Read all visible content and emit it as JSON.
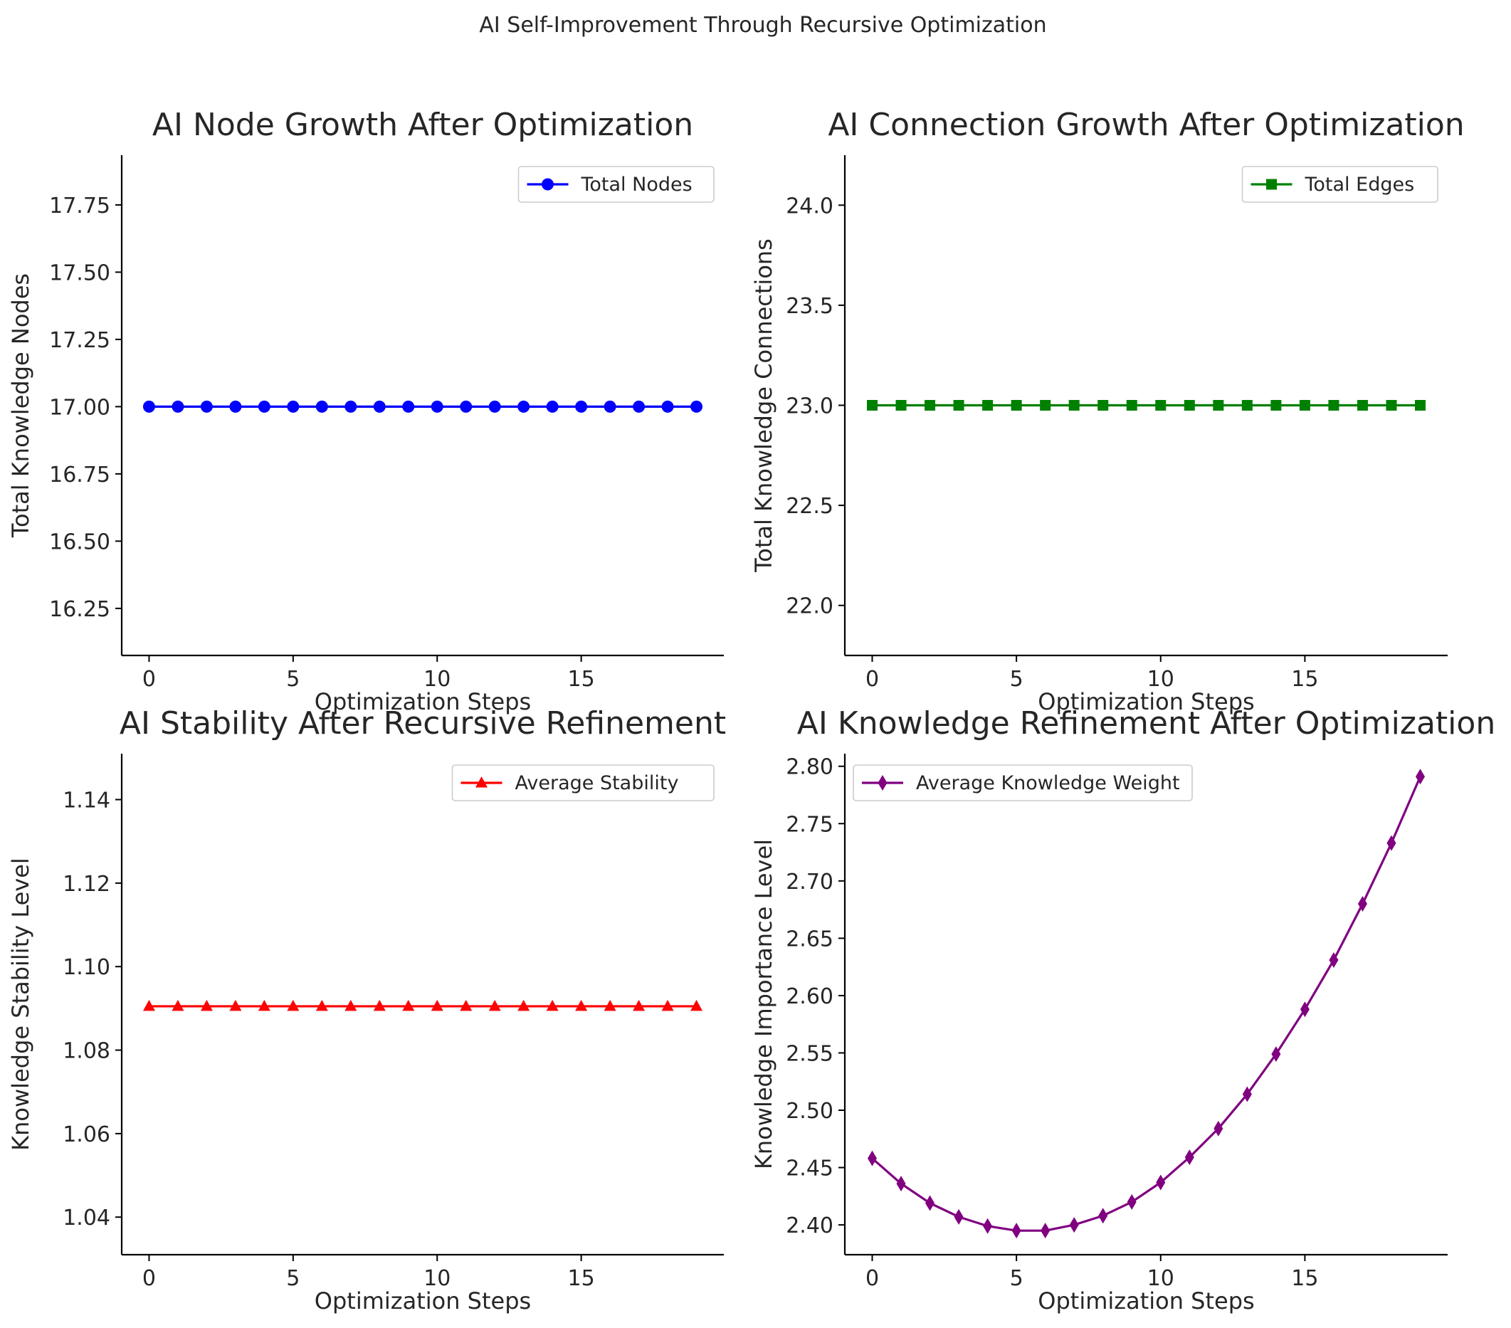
{
  "figure": {
    "suptitle": "AI Self-Improvement Through Recursive Optimization"
  },
  "chart_data": [
    {
      "type": "line",
      "title": "AI Node Growth After Optimization",
      "xlabel": "Optimization Steps",
      "ylabel": "Total Knowledge Nodes",
      "xlim": [
        -0.95,
        19.95
      ],
      "ylim": [
        16.075,
        17.935
      ],
      "xticks": [
        0,
        5,
        10,
        15
      ],
      "yticks": [
        16.25,
        16.5,
        16.75,
        17.0,
        17.25,
        17.5,
        17.75
      ],
      "ytick_labels": [
        "16.25",
        "16.50",
        "16.75",
        "17.00",
        "17.25",
        "17.50",
        "17.75"
      ],
      "xtick_labels": [
        "0",
        "5",
        "10",
        "15"
      ],
      "legend_position": "upper right",
      "grid": false,
      "series": [
        {
          "name": "Total Nodes",
          "color": "#0000ff",
          "marker": "circle",
          "x": [
            0,
            1,
            2,
            3,
            4,
            5,
            6,
            7,
            8,
            9,
            10,
            11,
            12,
            13,
            14,
            15,
            16,
            17,
            18,
            19
          ],
          "y": [
            17,
            17,
            17,
            17,
            17,
            17,
            17,
            17,
            17,
            17,
            17,
            17,
            17,
            17,
            17,
            17,
            17,
            17,
            17,
            17
          ]
        }
      ]
    },
    {
      "type": "line",
      "title": "AI Connection Growth After Optimization",
      "xlabel": "Optimization Steps",
      "ylabel": "Total Knowledge Connections",
      "xlim": [
        -0.95,
        19.95
      ],
      "ylim": [
        21.75,
        24.25
      ],
      "xticks": [
        0,
        5,
        10,
        15
      ],
      "yticks": [
        22.0,
        22.5,
        23.0,
        23.5,
        24.0
      ],
      "ytick_labels": [
        "22.0",
        "22.5",
        "23.0",
        "23.5",
        "24.0"
      ],
      "xtick_labels": [
        "0",
        "5",
        "10",
        "15"
      ],
      "legend_position": "upper right",
      "grid": false,
      "series": [
        {
          "name": "Total Edges",
          "color": "#008000",
          "marker": "square",
          "x": [
            0,
            1,
            2,
            3,
            4,
            5,
            6,
            7,
            8,
            9,
            10,
            11,
            12,
            13,
            14,
            15,
            16,
            17,
            18,
            19
          ],
          "y": [
            23,
            23,
            23,
            23,
            23,
            23,
            23,
            23,
            23,
            23,
            23,
            23,
            23,
            23,
            23,
            23,
            23,
            23,
            23,
            23
          ]
        }
      ]
    },
    {
      "type": "line",
      "title": "AI Stability After Recursive Refinement",
      "xlabel": "Optimization Steps",
      "ylabel": "Knowledge Stability Level",
      "xlim": [
        -0.95,
        19.95
      ],
      "ylim": [
        1.031,
        1.151
      ],
      "xticks": [
        0,
        5,
        10,
        15
      ],
      "yticks": [
        1.04,
        1.06,
        1.08,
        1.1,
        1.12,
        1.14
      ],
      "ytick_labels": [
        "1.04",
        "1.06",
        "1.08",
        "1.10",
        "1.12",
        "1.14"
      ],
      "xtick_labels": [
        "0",
        "5",
        "10",
        "15"
      ],
      "legend_position": "upper right",
      "grid": false,
      "series": [
        {
          "name": "Average Stability",
          "color": "#ff0000",
          "marker": "triangle",
          "x": [
            0,
            1,
            2,
            3,
            4,
            5,
            6,
            7,
            8,
            9,
            10,
            11,
            12,
            13,
            14,
            15,
            16,
            17,
            18,
            19
          ],
          "y": [
            1.0905,
            1.0905,
            1.0905,
            1.0905,
            1.0905,
            1.0905,
            1.0905,
            1.0905,
            1.0905,
            1.0905,
            1.0905,
            1.0905,
            1.0905,
            1.0905,
            1.0905,
            1.0905,
            1.0905,
            1.0905,
            1.0905,
            1.0905
          ]
        }
      ]
    },
    {
      "type": "line",
      "title": "AI Knowledge Refinement After Optimization",
      "xlabel": "Optimization Steps",
      "ylabel": "Knowledge Importance Level",
      "xlim": [
        -0.95,
        19.95
      ],
      "ylim": [
        2.374,
        2.811
      ],
      "xticks": [
        0,
        5,
        10,
        15
      ],
      "yticks": [
        2.4,
        2.45,
        2.5,
        2.55,
        2.6,
        2.65,
        2.7,
        2.75,
        2.8
      ],
      "ytick_labels": [
        "2.40",
        "2.45",
        "2.50",
        "2.55",
        "2.60",
        "2.65",
        "2.70",
        "2.75",
        "2.80"
      ],
      "xtick_labels": [
        "0",
        "5",
        "10",
        "15"
      ],
      "legend_position": "upper left",
      "grid": false,
      "series": [
        {
          "name": "Average Knowledge Weight",
          "color": "#800080",
          "marker": "diamond",
          "x": [
            0,
            1,
            2,
            3,
            4,
            5,
            6,
            7,
            8,
            9,
            10,
            11,
            12,
            13,
            14,
            15,
            16,
            17,
            18,
            19
          ],
          "y": [
            2.458,
            2.436,
            2.419,
            2.407,
            2.399,
            2.395,
            2.395,
            2.4,
            2.408,
            2.42,
            2.437,
            2.459,
            2.484,
            2.514,
            2.549,
            2.588,
            2.631,
            2.68,
            2.733,
            2.791
          ]
        }
      ]
    }
  ]
}
